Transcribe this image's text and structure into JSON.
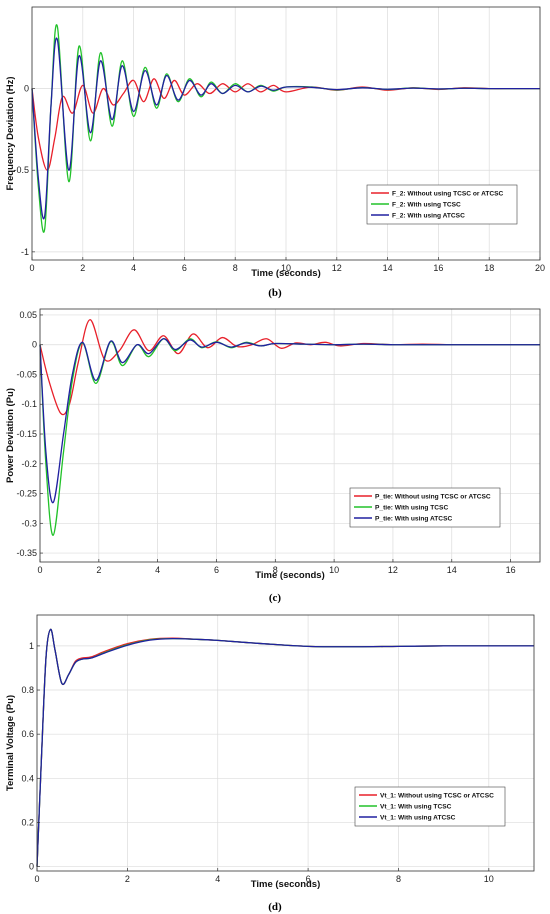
{
  "chart_data": [
    {
      "type": "line",
      "caption": "(b)",
      "xlabel": "Time (seconds)",
      "ylabel": "Frequency Deviation (Hz)",
      "xlim": [
        0,
        20
      ],
      "ylim": [
        -1.05,
        0.5
      ],
      "xticks": [
        0,
        2,
        4,
        6,
        8,
        10,
        12,
        14,
        16,
        18,
        20
      ],
      "yticks": [
        -1,
        -0.5,
        0
      ],
      "grid": true,
      "legend_position": "lower-right",
      "series": [
        {
          "name": "F_2: Without using TCSC or ATCSC",
          "color": "#e8202a",
          "x": [
            0,
            0.25,
            0.6,
            0.9,
            1.2,
            1.6,
            2.0,
            2.4,
            2.8,
            3.2,
            3.6,
            4.0,
            4.4,
            4.8,
            5.2,
            5.6,
            6.0,
            6.5,
            7.0,
            7.5,
            8.0,
            8.5,
            9.0,
            9.5,
            10,
            11,
            12,
            13,
            14,
            15,
            16,
            17,
            18,
            19,
            20
          ],
          "y": [
            0,
            -0.3,
            -0.5,
            -0.3,
            -0.05,
            -0.15,
            0.02,
            -0.15,
            0.0,
            -0.1,
            -0.03,
            0.05,
            -0.08,
            0.06,
            -0.06,
            0.05,
            -0.04,
            0.03,
            -0.03,
            0.03,
            -0.02,
            0.03,
            -0.02,
            0.02,
            -0.02,
            0.01,
            -0.01,
            0.01,
            -0.01,
            0.005,
            -0.005,
            0.005,
            0.0,
            0.0,
            0.0
          ]
        },
        {
          "name": "F_2: With using TCSC",
          "color": "#22c22a",
          "x": [
            0,
            0.25,
            0.5,
            0.75,
            1.0,
            1.45,
            1.85,
            2.3,
            2.7,
            3.15,
            3.55,
            4.0,
            4.45,
            4.9,
            5.3,
            5.75,
            6.2,
            6.65,
            7.05,
            7.5,
            8.0,
            8.5,
            9.0,
            9.5,
            10,
            11,
            12,
            13,
            14,
            15,
            16,
            17,
            18,
            19,
            20
          ],
          "y": [
            0,
            -0.6,
            -0.86,
            -0.1,
            0.38,
            -0.57,
            0.26,
            -0.32,
            0.22,
            -0.23,
            0.17,
            -0.17,
            0.13,
            -0.12,
            0.09,
            -0.08,
            0.06,
            -0.05,
            0.04,
            -0.03,
            0.03,
            -0.02,
            0.02,
            -0.015,
            0.01,
            0.01,
            -0.008,
            0.006,
            -0.005,
            0.004,
            -0.003,
            0.002,
            0.0,
            0.0,
            0.0
          ]
        },
        {
          "name": "F_2: With using ATCSC",
          "color": "#2020a0",
          "x": [
            0,
            0.25,
            0.5,
            0.75,
            1.0,
            1.45,
            1.85,
            2.3,
            2.7,
            3.15,
            3.55,
            4.0,
            4.45,
            4.9,
            5.3,
            5.75,
            6.2,
            6.65,
            7.05,
            7.5,
            8.0,
            8.5,
            9.0,
            9.5,
            10,
            11,
            12,
            13,
            14,
            15,
            16,
            17,
            18,
            19,
            20
          ],
          "y": [
            0,
            -0.55,
            -0.78,
            -0.1,
            0.3,
            -0.5,
            0.2,
            -0.27,
            0.17,
            -0.19,
            0.14,
            -0.14,
            0.11,
            -0.1,
            0.08,
            -0.07,
            0.05,
            -0.04,
            0.03,
            -0.03,
            0.02,
            -0.02,
            0.015,
            -0.01,
            0.01,
            0.008,
            -0.006,
            0.005,
            -0.004,
            0.003,
            -0.002,
            0.002,
            0.0,
            0.0,
            0.0
          ]
        }
      ]
    },
    {
      "type": "line",
      "caption": "(c)",
      "xlabel": "Time (seconds)",
      "ylabel": "Power Deviation (Pu)",
      "xlim": [
        0,
        17
      ],
      "ylim": [
        -0.365,
        0.06
      ],
      "xticks": [
        0,
        2,
        4,
        6,
        8,
        10,
        12,
        14,
        16
      ],
      "yticks": [
        -0.35,
        -0.3,
        -0.25,
        -0.2,
        -0.15,
        -0.1,
        -0.05,
        0,
        0.05
      ],
      "grid": true,
      "legend_position": "lower-right",
      "series": [
        {
          "name": "P_tie: Without using TCSC or ATCSC",
          "color": "#e8202a",
          "x": [
            0,
            0.3,
            0.7,
            1.0,
            1.3,
            1.7,
            2.2,
            2.7,
            3.2,
            3.7,
            4.2,
            4.7,
            5.2,
            5.7,
            6.2,
            6.7,
            7.2,
            7.7,
            8.2,
            8.7,
            9.2,
            9.7,
            10.2,
            11,
            12,
            13,
            14,
            15,
            16,
            17
          ],
          "y": [
            0,
            -0.06,
            -0.115,
            -0.1,
            -0.03,
            0.042,
            -0.025,
            -0.01,
            0.025,
            -0.01,
            0.015,
            -0.015,
            0.018,
            -0.005,
            0.012,
            -0.003,
            0.0,
            0.01,
            -0.006,
            0.003,
            0.0,
            0.004,
            -0.002,
            0.002,
            0.0,
            0.001,
            0.0,
            0.0,
            0.0,
            0.0
          ]
        },
        {
          "name": "P_tie: With using TCSC",
          "color": "#22c22a",
          "x": [
            0,
            0.2,
            0.45,
            0.8,
            1.1,
            1.45,
            1.9,
            2.4,
            2.8,
            3.3,
            3.7,
            4.2,
            4.6,
            5.1,
            5.5,
            6.0,
            6.5,
            7.0,
            7.5,
            8.0,
            9,
            10,
            11,
            12,
            13,
            14,
            15,
            16,
            17
          ],
          "y": [
            0,
            -0.2,
            -0.32,
            -0.18,
            -0.06,
            0.003,
            -0.065,
            0.005,
            -0.035,
            0.0,
            -0.02,
            0.01,
            -0.01,
            0.01,
            -0.005,
            0.005,
            -0.005,
            0.004,
            -0.002,
            0.002,
            0.001,
            0.0,
            0.001,
            0.0,
            0.0,
            0.0,
            0.0,
            0.0,
            0.0
          ]
        },
        {
          "name": "P_tie: With using ATCSC",
          "color": "#2020a0",
          "x": [
            0,
            0.2,
            0.45,
            0.8,
            1.1,
            1.45,
            1.9,
            2.4,
            2.8,
            3.3,
            3.7,
            4.2,
            4.6,
            5.1,
            5.5,
            6.0,
            6.5,
            7.0,
            7.5,
            8.0,
            9,
            10,
            11,
            12,
            13,
            14,
            15,
            16,
            17
          ],
          "y": [
            0,
            -0.18,
            -0.265,
            -0.15,
            -0.05,
            0.004,
            -0.06,
            0.006,
            -0.03,
            0.0,
            -0.015,
            0.01,
            -0.008,
            0.008,
            -0.004,
            0.004,
            -0.004,
            0.003,
            -0.002,
            0.002,
            0.001,
            0.0,
            0.001,
            0.0,
            0.0,
            0.0,
            0.0,
            0.0,
            0.0
          ]
        }
      ]
    },
    {
      "type": "line",
      "caption": "(d)",
      "xlabel": "Time (seconds)",
      "ylabel": "Terminal Voltage (Pu)",
      "xlim": [
        0,
        11
      ],
      "ylim": [
        -0.02,
        1.14
      ],
      "xticks": [
        0,
        2,
        4,
        6,
        8,
        10
      ],
      "yticks": [
        0,
        0.2,
        0.4,
        0.6,
        0.8,
        1
      ],
      "grid": true,
      "legend_position": "lower-right",
      "series": [
        {
          "name": "Vt_1: Without using TCSC or ATCSC",
          "color": "#e8202a",
          "x": [
            0,
            0.1,
            0.2,
            0.3,
            0.4,
            0.55,
            0.7,
            0.85,
            1.0,
            1.2,
            1.5,
            2.0,
            2.5,
            3.0,
            3.5,
            4.0,
            5.0,
            6.0,
            7.0,
            8.0,
            9.0,
            10.0,
            11.0
          ],
          "y": [
            0,
            0.5,
            0.95,
            1.075,
            0.98,
            0.83,
            0.87,
            0.93,
            0.945,
            0.95,
            0.975,
            1.01,
            1.03,
            1.035,
            1.03,
            1.025,
            1.01,
            0.998,
            0.996,
            0.998,
            1.0,
            1.0,
            1.0
          ]
        },
        {
          "name": "Vt_1: With using TCSC",
          "color": "#22c22a",
          "x": [
            0,
            0.1,
            0.2,
            0.3,
            0.4,
            0.55,
            0.7,
            0.85,
            1.0,
            1.2,
            1.5,
            2.0,
            2.5,
            3.0,
            3.5,
            4.0,
            5.0,
            6.0,
            7.0,
            8.0,
            9.0,
            10.0,
            11.0
          ],
          "y": [
            0,
            0.5,
            0.95,
            1.075,
            0.98,
            0.83,
            0.87,
            0.925,
            0.94,
            0.945,
            0.97,
            1.005,
            1.028,
            1.033,
            1.03,
            1.025,
            1.01,
            0.998,
            0.996,
            0.998,
            1.0,
            1.0,
            1.0
          ]
        },
        {
          "name": "Vt_1: With using ATCSC",
          "color": "#2020a0",
          "x": [
            0,
            0.1,
            0.2,
            0.3,
            0.4,
            0.55,
            0.7,
            0.85,
            1.0,
            1.2,
            1.5,
            2.0,
            2.5,
            3.0,
            3.5,
            4.0,
            5.0,
            6.0,
            7.0,
            8.0,
            9.0,
            10.0,
            11.0
          ],
          "y": [
            0,
            0.5,
            0.95,
            1.075,
            0.98,
            0.83,
            0.87,
            0.925,
            0.94,
            0.945,
            0.968,
            1.003,
            1.026,
            1.033,
            1.03,
            1.025,
            1.01,
            0.998,
            0.996,
            0.998,
            1.0,
            1.0,
            1.0
          ]
        }
      ]
    }
  ]
}
